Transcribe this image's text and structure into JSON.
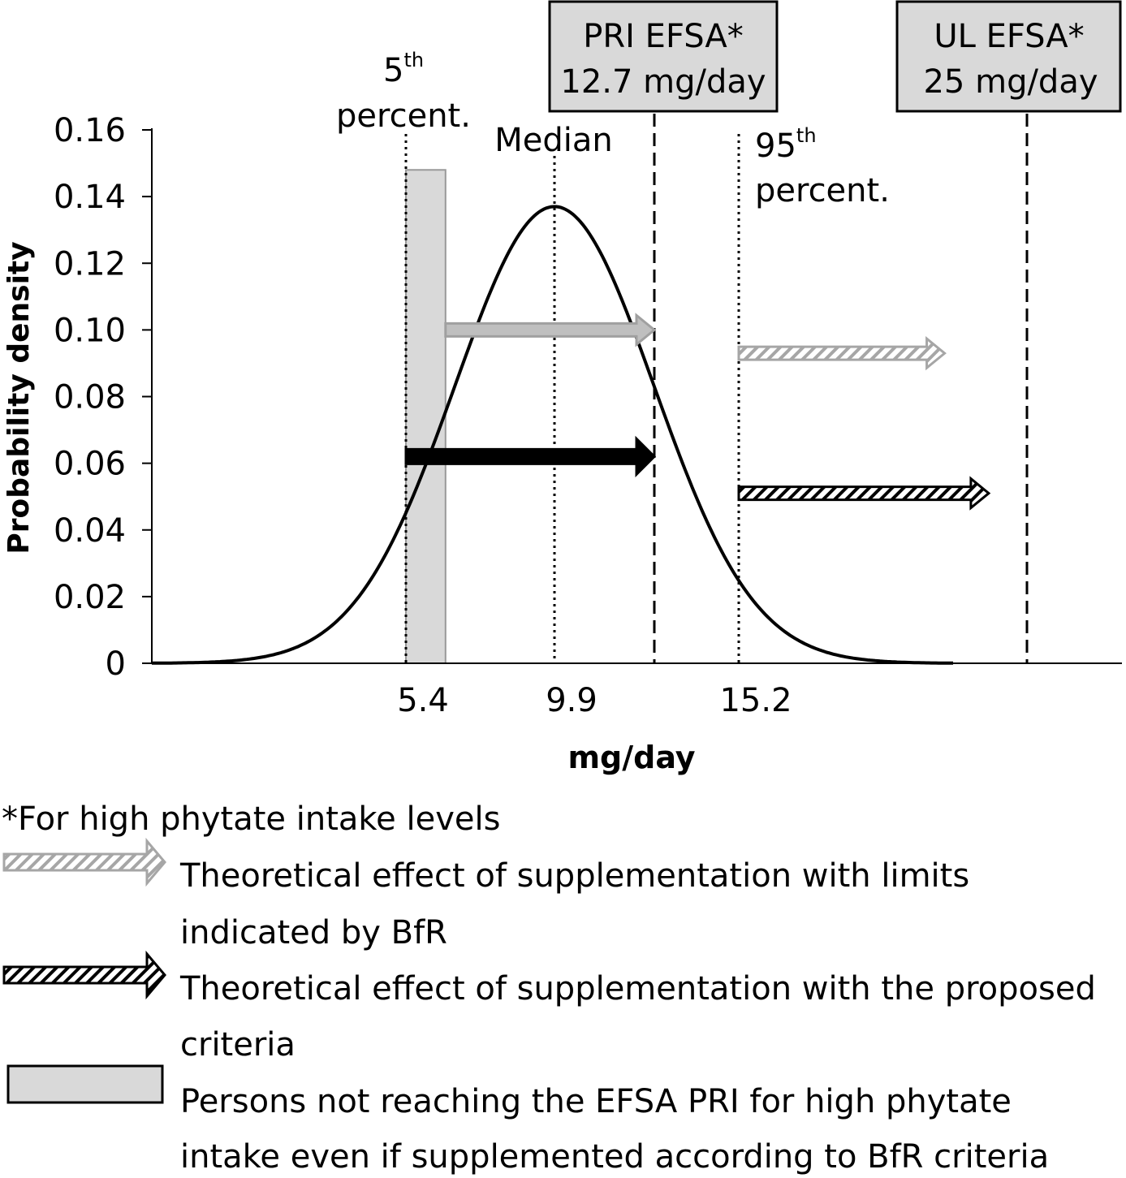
{
  "chart_data": {
    "type": "line",
    "ylabel": "Probability density",
    "xlabel": "mg/day",
    "ylim": [
      0,
      0.16
    ],
    "y_ticks": [
      "0",
      "0.02",
      "0.04",
      "0.06",
      "0.08",
      "0.10",
      "0.12",
      "0.14",
      "0.16"
    ],
    "x_ticks": [
      "5.4",
      "9.9",
      "15.2"
    ],
    "grid": false,
    "curve": {
      "distribution": "normal",
      "median": 9.9,
      "peak_density": 0.137,
      "p5": 5.4,
      "p95": 15.2
    },
    "vertical_lines": [
      {
        "x": 5.4,
        "style": "dotted",
        "label_main": "5",
        "label_sup": "th",
        "label_rest": "percent."
      },
      {
        "x": 9.9,
        "style": "dotted",
        "label_main": "Median"
      },
      {
        "x": 12.7,
        "style": "dashed"
      },
      {
        "x": 15.2,
        "style": "dotted",
        "label_main": "95",
        "label_sup": "th",
        "label_rest": "percent."
      },
      {
        "x": 25,
        "style": "dashed"
      }
    ],
    "boxes": [
      {
        "line1": "PRI EFSA*",
        "line2": "12.7 mg/day"
      },
      {
        "line1": "UL EFSA*",
        "line2": "25 mg/day"
      }
    ],
    "shaded_bar": {
      "x_from": 5.4,
      "x_to": 6.6,
      "y_top": 0.148,
      "color": "#d9d9d9"
    },
    "arrows": [
      {
        "from": 6.6,
        "to": 12.7,
        "y": 0.1,
        "style": "solid",
        "color": "#bfbfbf"
      },
      {
        "from": 5.4,
        "to": 12.7,
        "y": 0.062,
        "style": "solid",
        "color": "#000000"
      },
      {
        "from": 15.2,
        "to": 22.2,
        "y": 0.093,
        "style": "hatched",
        "color": "#a6a6a6"
      },
      {
        "from": 15.2,
        "to": 23.7,
        "y": 0.051,
        "style": "hatched",
        "color": "#000000"
      }
    ]
  },
  "footnote": "*For high phytate intake levels",
  "legend": [
    {
      "icon": "gray-hatched-arrow",
      "line1": "Theoretical effect of supplementation with limits",
      "line2": "indicated by BfR"
    },
    {
      "icon": "black-hatched-arrow",
      "line1": "Theoretical effect of supplementation with the proposed",
      "line2": "criteria"
    },
    {
      "icon": "gray-box",
      "line1": "Persons not reaching the EFSA PRI for high phytate",
      "line2": "intake even if supplemented according to BfR criteria"
    }
  ]
}
